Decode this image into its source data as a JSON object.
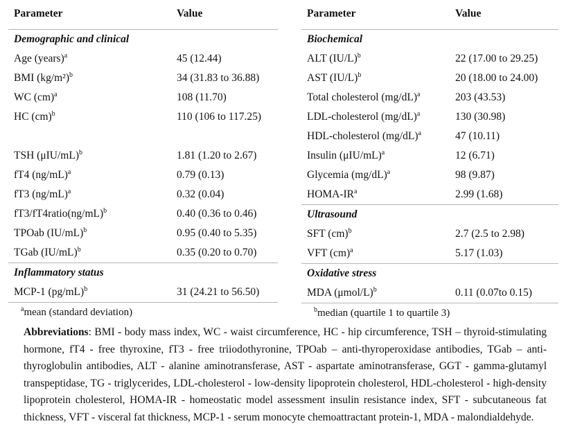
{
  "page": {
    "background_color": "#ffffff",
    "rule_color": "#b5b5b5",
    "text_color": "#121212"
  },
  "tables": [
    {
      "header": {
        "parameter": "Parameter",
        "value": "Value"
      },
      "rows": [
        {
          "type": "section",
          "label": "Demographic and clinical"
        },
        {
          "type": "row",
          "label": "Age (years)",
          "sup": "a",
          "value": "45 (12.44)"
        },
        {
          "type": "row",
          "label": "BMI (kg/m²)",
          "sup": "b",
          "value": "34 (31.83 to 36.88)"
        },
        {
          "type": "row",
          "label": "WC (cm)",
          "sup": "a",
          "value": "108 (11.70)"
        },
        {
          "type": "row",
          "label": "HC (cm)",
          "sup": "b",
          "value": "110 (106 to 117.25)"
        },
        {
          "type": "blank"
        },
        {
          "type": "row",
          "label": "TSH (μIU/mL)",
          "sup": "b",
          "value": "1.81 (1.20 to 2.67)"
        },
        {
          "type": "row",
          "label": "fT4 (ng/mL)",
          "sup": "a",
          "value": "0.79 (0.13)"
        },
        {
          "type": "row",
          "label": "fT3 (ng/mL)",
          "sup": "a",
          "value": "0.32 (0.04)"
        },
        {
          "type": "row",
          "label": "fT3/fT4ratio(ng/mL)",
          "sup": "b",
          "value": "0.40 (0.36 to 0.46)"
        },
        {
          "type": "row",
          "label": "TPOab (IU/mL)",
          "sup": "b",
          "value": "0.95 (0.40 to 5.35)"
        },
        {
          "type": "row",
          "label": "TGab (IU/mL)",
          "sup": "b",
          "value": "0.35 (0.20 to 0.70)"
        },
        {
          "type": "rule"
        },
        {
          "type": "section",
          "label": "Inflammatory status"
        },
        {
          "type": "row",
          "label": "MCP-1 (pg/mL)",
          "sup": "b",
          "value": "31 (24.21 to 56.50)"
        }
      ],
      "footnote": {
        "sup": "a",
        "text": "mean (standard deviation)"
      }
    },
    {
      "header": {
        "parameter": "Parameter",
        "value": "Value"
      },
      "rows": [
        {
          "type": "section",
          "label": "Biochemical"
        },
        {
          "type": "row",
          "label": "ALT (IU/L)",
          "sup": "b",
          "value": "22 (17.00 to 29.25)"
        },
        {
          "type": "row",
          "label": "AST (IU/L)",
          "sup": "b",
          "value": "20 (18.00 to 24.00)"
        },
        {
          "type": "row",
          "label": "Total cholesterol (mg/dL)",
          "sup": "a",
          "value": "203 (43.53)"
        },
        {
          "type": "row",
          "label": "LDL-cholesterol (mg/dL)",
          "sup": "a",
          "value": "130 (30.98)"
        },
        {
          "type": "row",
          "label": "HDL-cholesterol (mg/dL)",
          "sup": "a",
          "value": "47 (10.11)"
        },
        {
          "type": "row",
          "label": "Insulin (μIU/mL)",
          "sup": "a",
          "value": "12 (6.71)"
        },
        {
          "type": "row",
          "label": "Glycemia (mg/dL)",
          "sup": "a",
          "value": "98 (9.87)"
        },
        {
          "type": "row",
          "label": "HOMA-IR",
          "sup": "a",
          "value": "2.99 (1.68)"
        },
        {
          "type": "rule"
        },
        {
          "type": "section",
          "label": "Ultrasound"
        },
        {
          "type": "row",
          "label": "SFT (cm)",
          "sup": "b",
          "value": "2.7 (2.5 to 2.98)"
        },
        {
          "type": "row",
          "label": "VFT (cm)",
          "sup": "a",
          "value": "5.17 (1.03)"
        },
        {
          "type": "rule"
        },
        {
          "type": "section",
          "label": "Oxidative stress"
        },
        {
          "type": "row",
          "label": "MDA (μmol/L)",
          "sup": "b",
          "value": "0.11 (0.07to 0.15)"
        }
      ],
      "footnote": {
        "sup": "b",
        "text": "median (quartile 1 to quartile 3)"
      }
    }
  ],
  "abbreviations": {
    "lead": "Abbreviations",
    "text": ": BMI - body mass index, WC - waist circumference, HC - hip circumference, TSH – thyroid-stimulating hormone, fT4 - free thyroxine, fT3 - free triiodothyronine, TPOab – anti-thyroperoxidase antibodies, TGab – anti-thyroglobulin antibodies, ALT - alanine aminotransferase, AST - aspartate aminotransferase, GGT - gamma-glutamyl transpeptidase, TG - triglycerides, LDL-cholesterol - low-density lipoprotein cholesterol, HDL-cholesterol - high-density lipoprotein cholesterol, HOMA-IR - homeostatic model assessment insulin resistance index, SFT - subcutaneous fat thickness, VFT - visceral fat thickness, MCP-1 - serum monocyte chemoattractant protein-1, MDA - malondialdehyde."
  }
}
